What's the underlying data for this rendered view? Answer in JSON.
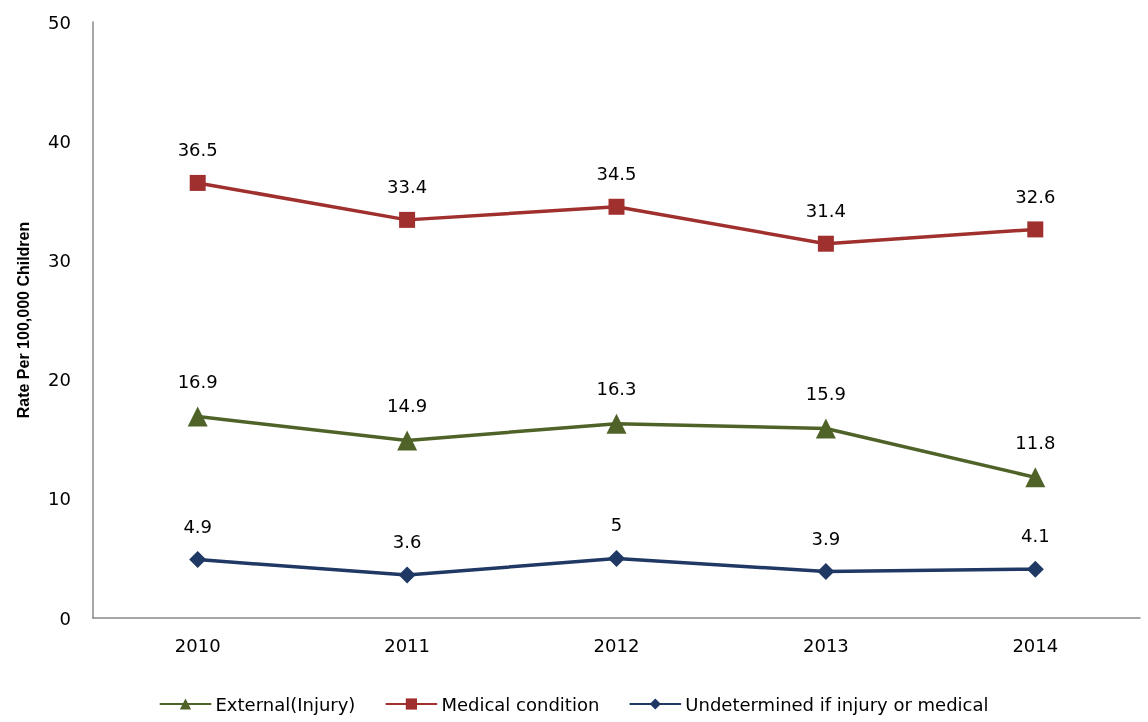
{
  "chart_data": {
    "type": "line",
    "ylabel": "Rate Per 100,000 Children",
    "categories": [
      "2010",
      "2011",
      "2012",
      "2013",
      "2014"
    ],
    "series": [
      {
        "name": "External(Injury)",
        "color": "#4f6228",
        "marker": "triangle",
        "values": [
          16.9,
          14.9,
          16.3,
          15.9,
          11.8
        ]
      },
      {
        "name": "Medical condition",
        "color": "#a0302e",
        "marker": "square",
        "values": [
          36.5,
          33.4,
          34.5,
          31.4,
          32.6
        ]
      },
      {
        "name": "Undetermined if injury or medical",
        "color": "#1f3864",
        "marker": "diamond",
        "values": [
          4.9,
          3.6,
          5,
          3.9,
          4.1
        ]
      }
    ],
    "ylim": [
      0,
      50
    ],
    "yticks": [
      0,
      10,
      20,
      30,
      40,
      50
    ],
    "grid": false,
    "legend": "bottom",
    "data_labels": true,
    "line_style": "solid"
  }
}
